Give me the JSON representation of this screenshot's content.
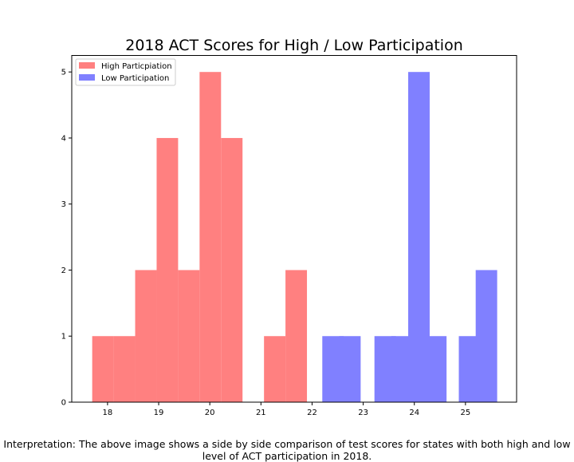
{
  "chart_data": {
    "type": "bar",
    "title": "2018 ACT Scores for High / Low Participation",
    "xlabel": "",
    "ylabel": "",
    "xlim": [
      17.3,
      26.0
    ],
    "ylim": [
      0,
      5.25
    ],
    "xticks": [
      18,
      19,
      20,
      21,
      22,
      23,
      24,
      25
    ],
    "yticks": [
      0,
      1,
      2,
      3,
      4,
      5
    ],
    "grid": false,
    "legend": "top-left",
    "bin_width": 0.42,
    "series": [
      {
        "name": "High Participation",
        "label": "High Particpiation",
        "color": "#ff8080",
        "bins": [
          {
            "x0": 17.7,
            "count": 1
          },
          {
            "x0": 18.12,
            "count": 1
          },
          {
            "x0": 18.54,
            "count": 2
          },
          {
            "x0": 18.96,
            "count": 4
          },
          {
            "x0": 19.38,
            "count": 2
          },
          {
            "x0": 19.8,
            "count": 5
          },
          {
            "x0": 20.22,
            "count": 4
          },
          {
            "x0": 21.06,
            "count": 1
          },
          {
            "x0": 21.48,
            "count": 2
          }
        ]
      },
      {
        "name": "Low Participation",
        "label": "Low Participation",
        "color": "#8080ff",
        "bins": [
          {
            "x0": 22.2,
            "count": 1
          },
          {
            "x0": 22.53,
            "count": 1
          },
          {
            "x0": 23.22,
            "count": 1
          },
          {
            "x0": 23.55,
            "count": 1
          },
          {
            "x0": 23.88,
            "count": 5
          },
          {
            "x0": 24.21,
            "count": 1
          },
          {
            "x0": 24.87,
            "count": 1
          },
          {
            "x0": 25.2,
            "count": 2
          }
        ]
      }
    ]
  },
  "caption": "Interpretation: The above image shows a side by side comparison of test scores for states with both high and low level of ACT participation in 2018."
}
